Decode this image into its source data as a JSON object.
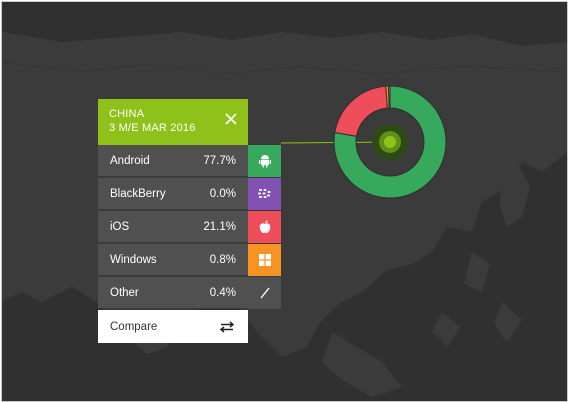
{
  "header": {
    "line1": "CHINA",
    "line2": "3 M/E MAR 2016"
  },
  "rows": [
    {
      "label": "Android",
      "value": "77.7%",
      "color": "#37a95c",
      "icon": "android-icon"
    },
    {
      "label": "BlackBerry",
      "value": "0.0%",
      "color": "#8252b2",
      "icon": "blackberry-icon"
    },
    {
      "label": "iOS",
      "value": "21.1%",
      "color": "#f04d5b",
      "icon": "apple-icon"
    },
    {
      "label": "Windows",
      "value": "0.8%",
      "color": "#f59422",
      "icon": "windows-icon"
    },
    {
      "label": "Other",
      "value": "0.4%",
      "color": "#505050",
      "icon": "other-slash-icon"
    }
  ],
  "compare_label": "Compare",
  "accent_color": "#8ec21a",
  "chart_data": {
    "type": "pie",
    "categories": [
      "Android",
      "BlackBerry",
      "iOS",
      "Windows",
      "Other"
    ],
    "values": [
      77.7,
      0.0,
      21.1,
      0.8,
      0.4
    ],
    "colors": [
      "#37a95c",
      "#8252b2",
      "#f04d5b",
      "#f59422",
      "#9a9a9a"
    ],
    "title": "",
    "style": "donut"
  }
}
